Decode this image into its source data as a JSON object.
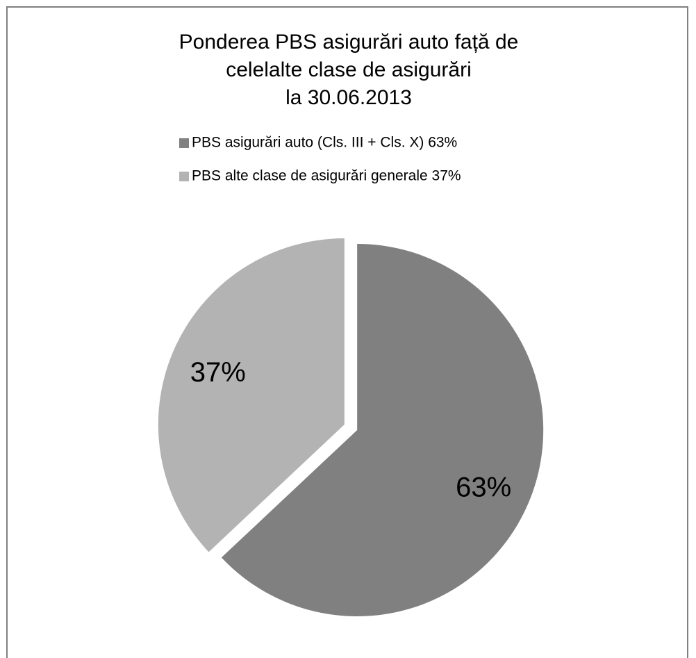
{
  "chart_data": {
    "type": "pie",
    "title": [
      "Ponderea PBS  asigurări auto față de",
      "celelalte clase de asigurări",
      "la 30.06.2013"
    ],
    "categories": [
      "PBS asigurări auto (Cls. III + Cls. X)  63%",
      "PBS alte clase  de asigurări generale 37%"
    ],
    "values": [
      63,
      37
    ],
    "value_labels": [
      "63%",
      "37%"
    ],
    "colors": [
      "#808080",
      "#b3b3b3"
    ],
    "legend": "top"
  }
}
